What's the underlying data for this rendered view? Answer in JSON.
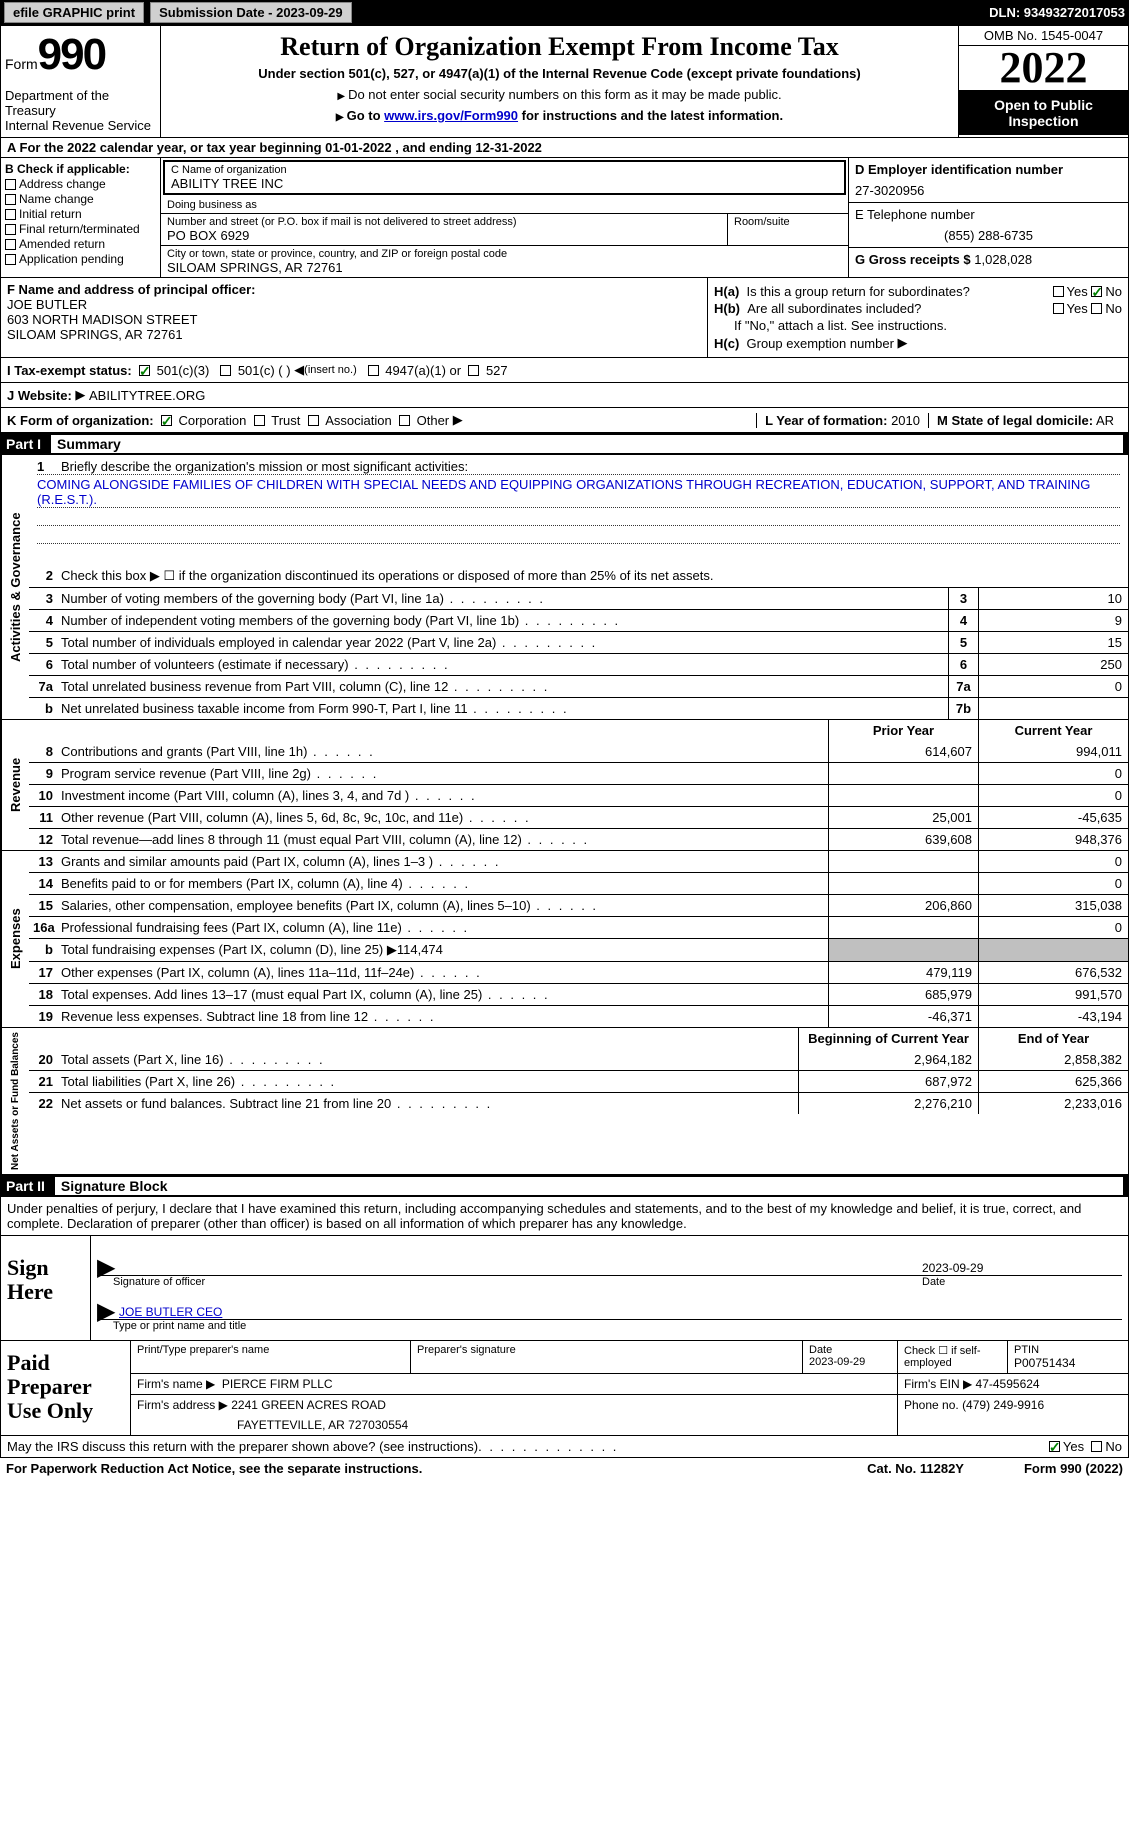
{
  "colors": {
    "link": "#0000cc",
    "check": "#008000",
    "bg_gray": "#c0c0c0",
    "text": "#000000",
    "header_bg": "#000000",
    "header_fg": "#ffffff"
  },
  "topbar": {
    "efile": "efile GRAPHIC print",
    "submission_label": "Submission Date - 2023-09-29",
    "dln_label": "DLN: 93493272017053"
  },
  "header": {
    "form_word": "Form",
    "form_number": "990",
    "dept": "Department of the Treasury",
    "irs": "Internal Revenue Service",
    "title": "Return of Organization Exempt From Income Tax",
    "sub1": "Under section 501(c), 527, or 4947(a)(1) of the Internal Revenue Code (except private foundations)",
    "sub2": "Do not enter social security numbers on this form as it may be made public.",
    "sub3_pre": "Go to ",
    "sub3_link": "www.irs.gov/Form990",
    "sub3_post": " for instructions and the latest information.",
    "omb": "OMB No. 1545-0047",
    "year": "2022",
    "open": "Open to Public Inspection"
  },
  "row_a": "A For the 2022 calendar year, or tax year beginning 01-01-2022   , and ending 12-31-2022",
  "box_b": {
    "label": "B Check if applicable:",
    "opts": [
      "Address change",
      "Name change",
      "Initial return",
      "Final return/terminated",
      "Amended return",
      "Application pending"
    ]
  },
  "box_c": {
    "name_lbl": "C Name of organization",
    "name": "ABILITY TREE INC",
    "dba_lbl": "Doing business as",
    "dba": "",
    "addr_lbl": "Number and street (or P.O. box if mail is not delivered to street address)",
    "room_lbl": "Room/suite",
    "addr": "PO BOX 6929",
    "city_lbl": "City or town, state or province, country, and ZIP or foreign postal code",
    "city": "SILOAM SPRINGS, AR  72761"
  },
  "box_d": {
    "lbl": "D Employer identification number",
    "val": "27-3020956"
  },
  "box_e": {
    "lbl": "E Telephone number",
    "val": "(855) 288-6735"
  },
  "box_g": {
    "lbl": "G Gross receipts $",
    "val": "1,028,028"
  },
  "box_f": {
    "lbl": "F Name and address of principal officer:",
    "name": "JOE BUTLER",
    "addr1": "603 NORTH MADISON STREET",
    "addr2": "SILOAM SPRINGS, AR  72761"
  },
  "box_h": {
    "a_lbl": "Is this a group return for subordinates?",
    "a_yes": "Yes",
    "a_no": "No",
    "b_lbl": "Are all subordinates included?",
    "b_yes": "Yes",
    "b_no": "No",
    "b_note": "If \"No,\" attach a list. See instructions.",
    "c_lbl": "Group exemption number"
  },
  "box_i": {
    "lbl": "I   Tax-exempt status:",
    "o1": "501(c)(3)",
    "o2": "501(c) (  )",
    "o2_hint": "(insert no.)",
    "o3": "4947(a)(1) or",
    "o4": "527"
  },
  "box_j": {
    "lbl": "J   Website:",
    "val": "ABILITYTREE.ORG"
  },
  "box_k": {
    "lbl": "K Form of organization:",
    "o1": "Corporation",
    "o2": "Trust",
    "o3": "Association",
    "o4": "Other",
    "l_lbl": "L Year of formation:",
    "l_val": "2010",
    "m_lbl": "M State of legal domicile:",
    "m_val": "AR"
  },
  "part1": {
    "num": "Part I",
    "title": "Summary"
  },
  "mission": {
    "lbl_num": "1",
    "lbl": "Briefly describe the organization's mission or most significant activities:",
    "text": "COMING ALONGSIDE FAMILIES OF CHILDREN WITH SPECIAL NEEDS AND EQUIPPING ORGANIZATIONS THROUGH RECREATION, EDUCATION, SUPPORT, AND TRAINING (R.E.S.T.)."
  },
  "gov_lines": [
    {
      "n": "2",
      "d": "Check this box ▶ ☐ if the organization discontinued its operations or disposed of more than 25% of its net assets."
    },
    {
      "n": "3",
      "d": "Number of voting members of the governing body (Part VI, line 1a)",
      "box": "3",
      "v": "10"
    },
    {
      "n": "4",
      "d": "Number of independent voting members of the governing body (Part VI, line 1b)",
      "box": "4",
      "v": "9"
    },
    {
      "n": "5",
      "d": "Total number of individuals employed in calendar year 2022 (Part V, line 2a)",
      "box": "5",
      "v": "15"
    },
    {
      "n": "6",
      "d": "Total number of volunteers (estimate if necessary)",
      "box": "6",
      "v": "250"
    },
    {
      "n": "7a",
      "d": "Total unrelated business revenue from Part VIII, column (C), line 12",
      "box": "7a",
      "v": "0"
    },
    {
      "n": "b",
      "d": "Net unrelated business taxable income from Form 990-T, Part I, line 11",
      "box": "7b",
      "v": ""
    }
  ],
  "rev_hdr": {
    "py": "Prior Year",
    "cy": "Current Year"
  },
  "rev_lines": [
    {
      "n": "8",
      "d": "Contributions and grants (Part VIII, line 1h)",
      "py": "614,607",
      "cy": "994,011"
    },
    {
      "n": "9",
      "d": "Program service revenue (Part VIII, line 2g)",
      "py": "",
      "cy": "0"
    },
    {
      "n": "10",
      "d": "Investment income (Part VIII, column (A), lines 3, 4, and 7d )",
      "py": "",
      "cy": "0"
    },
    {
      "n": "11",
      "d": "Other revenue (Part VIII, column (A), lines 5, 6d, 8c, 9c, 10c, and 11e)",
      "py": "25,001",
      "cy": "-45,635"
    },
    {
      "n": "12",
      "d": "Total revenue—add lines 8 through 11 (must equal Part VIII, column (A), line 12)",
      "py": "639,608",
      "cy": "948,376"
    }
  ],
  "exp_lines": [
    {
      "n": "13",
      "d": "Grants and similar amounts paid (Part IX, column (A), lines 1–3 )",
      "py": "",
      "cy": "0"
    },
    {
      "n": "14",
      "d": "Benefits paid to or for members (Part IX, column (A), line 4)",
      "py": "",
      "cy": "0"
    },
    {
      "n": "15",
      "d": "Salaries, other compensation, employee benefits (Part IX, column (A), lines 5–10)",
      "py": "206,860",
      "cy": "315,038"
    },
    {
      "n": "16a",
      "d": "Professional fundraising fees (Part IX, column (A), line 11e)",
      "py": "",
      "cy": "0"
    },
    {
      "n": "b",
      "d": "Total fundraising expenses (Part IX, column (D), line 25) ▶114,474",
      "gray": true
    },
    {
      "n": "17",
      "d": "Other expenses (Part IX, column (A), lines 11a–11d, 11f–24e)",
      "py": "479,119",
      "cy": "676,532"
    },
    {
      "n": "18",
      "d": "Total expenses. Add lines 13–17 (must equal Part IX, column (A), line 25)",
      "py": "685,979",
      "cy": "991,570"
    },
    {
      "n": "19",
      "d": "Revenue less expenses. Subtract line 18 from line 12",
      "py": "-46,371",
      "cy": "-43,194"
    }
  ],
  "net_hdr": {
    "py": "Beginning of Current Year",
    "cy": "End of Year"
  },
  "net_lines": [
    {
      "n": "20",
      "d": "Total assets (Part X, line 16)",
      "py": "2,964,182",
      "cy": "2,858,382"
    },
    {
      "n": "21",
      "d": "Total liabilities (Part X, line 26)",
      "py": "687,972",
      "cy": "625,366"
    },
    {
      "n": "22",
      "d": "Net assets or fund balances. Subtract line 21 from line 20",
      "py": "2,276,210",
      "cy": "2,233,016"
    }
  ],
  "vlabels": {
    "gov": "Activities & Governance",
    "rev": "Revenue",
    "exp": "Expenses",
    "net": "Net Assets or Fund Balances"
  },
  "part2": {
    "num": "Part II",
    "title": "Signature Block"
  },
  "sig_decl": "Under penalties of perjury, I declare that I have examined this return, including accompanying schedules and statements, and to the best of my knowledge and belief, it is true, correct, and complete. Declaration of preparer (other than officer) is based on all information of which preparer has any knowledge.",
  "sign": {
    "label": "Sign Here",
    "sig_lbl": "Signature of officer",
    "date_lbl": "Date",
    "date_val": "2023-09-29",
    "name": "JOE BUTLER CEO",
    "name_lbl": "Type or print name and title"
  },
  "preparer": {
    "label": "Paid Preparer Use Only",
    "h1": "Print/Type preparer's name",
    "h2": "Preparer's signature",
    "h3_lbl": "Date",
    "h3": "2023-09-29",
    "h4_lbl": "Check ☐ if self-employed",
    "h5_lbl": "PTIN",
    "h5": "P00751434",
    "firm_name_lbl": "Firm's name   ▶",
    "firm_name": "PIERCE FIRM PLLC",
    "firm_ein_lbl": "Firm's EIN ▶",
    "firm_ein": "47-4595624",
    "firm_addr_lbl": "Firm's address ▶",
    "firm_addr1": "2241 GREEN ACRES ROAD",
    "firm_addr2": "FAYETTEVILLE, AR  727030554",
    "phone_lbl": "Phone no.",
    "phone": "(479) 249-9916"
  },
  "discuss": {
    "lbl": "May the IRS discuss this return with the preparer shown above? (see instructions)",
    "yes": "Yes",
    "no": "No"
  },
  "footer": {
    "left": "For Paperwork Reduction Act Notice, see the separate instructions.",
    "mid": "Cat. No. 11282Y",
    "right": "Form 990 (2022)"
  }
}
